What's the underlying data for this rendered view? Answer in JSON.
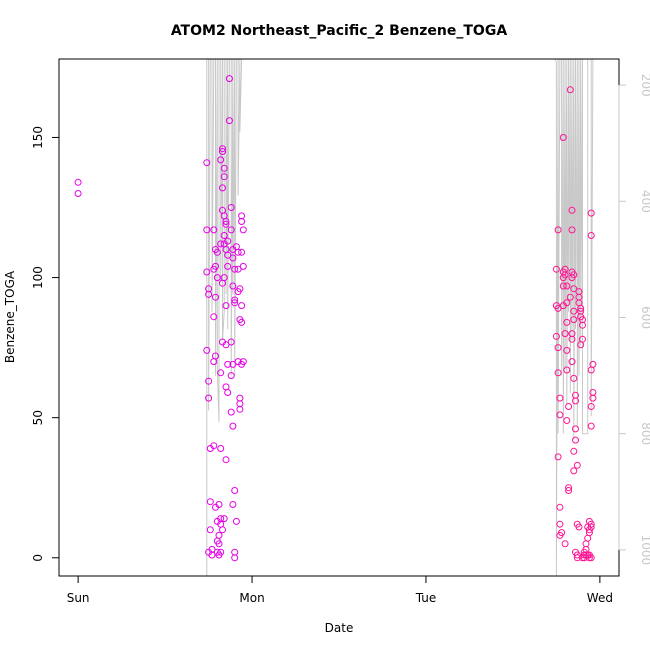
{
  "chart_data": {
    "type": "scatter",
    "title": "ATOM2 Northeast_Pacific_2 Benzene_TOGA",
    "xlabel": "Date",
    "ylabel": "Benzene_TOGA",
    "x_ticks": [
      {
        "value": 0,
        "label": "Sun"
      },
      {
        "value": 1,
        "label": "Mon"
      },
      {
        "value": 2,
        "label": "Tue"
      },
      {
        "value": 3,
        "label": "Wed"
      }
    ],
    "y_ticks": [
      0,
      50,
      100,
      150
    ],
    "y2_ticks": [
      200,
      400,
      600,
      800,
      1000
    ],
    "xlim": [
      -0.11,
      3.11
    ],
    "ylim": [
      -6.5,
      178
    ],
    "y2lim": [
      1045,
      155
    ],
    "y2_reversed": true,
    "grid": false,
    "colors": {
      "points": "#e600e6",
      "points_late": "#ff1493",
      "line": "#c8c8c8",
      "axes": "#000000",
      "right_axis": "#c8c8c8"
    },
    "series": [
      {
        "kind": "points",
        "points": [
          [
            0.0,
            134
          ],
          [
            0.0,
            130
          ],
          [
            0.74,
            141
          ],
          [
            0.74,
            117
          ],
          [
            0.74,
            102
          ],
          [
            0.75,
            96
          ],
          [
            0.75,
            94
          ],
          [
            0.74,
            74
          ],
          [
            0.75,
            63
          ],
          [
            0.75,
            57
          ],
          [
            0.76,
            39
          ],
          [
            0.76,
            20
          ],
          [
            0.76,
            10
          ],
          [
            0.75,
            2
          ],
          [
            0.77,
            1
          ],
          [
            0.77,
            3
          ],
          [
            0.78,
            117
          ],
          [
            0.79,
            110
          ],
          [
            0.79,
            104
          ],
          [
            0.78,
            103
          ],
          [
            0.78,
            86
          ],
          [
            0.79,
            72
          ],
          [
            0.78,
            70
          ],
          [
            0.78,
            40
          ],
          [
            0.79,
            18
          ],
          [
            0.8,
            13
          ],
          [
            0.8,
            6
          ],
          [
            0.8,
            2
          ],
          [
            0.81,
            1
          ],
          [
            0.82,
            14
          ],
          [
            0.81,
            8
          ],
          [
            0.81,
            5
          ],
          [
            0.8,
            109
          ],
          [
            0.8,
            100
          ],
          [
            0.79,
            93
          ],
          [
            0.81,
            19
          ],
          [
            0.82,
            12
          ],
          [
            0.82,
            142
          ],
          [
            0.83,
            145
          ],
          [
            0.83,
            146
          ],
          [
            0.84,
            139
          ],
          [
            0.84,
            136
          ],
          [
            0.83,
            132
          ],
          [
            0.84,
            122
          ],
          [
            0.85,
            120
          ],
          [
            0.85,
            119
          ],
          [
            0.84,
            112
          ],
          [
            0.85,
            110
          ],
          [
            0.86,
            108
          ],
          [
            0.86,
            104
          ],
          [
            0.84,
            100
          ],
          [
            0.83,
            98
          ],
          [
            0.85,
            90
          ],
          [
            0.83,
            77
          ],
          [
            0.85,
            76
          ],
          [
            0.86,
            69
          ],
          [
            0.85,
            61
          ],
          [
            0.86,
            59
          ],
          [
            0.82,
            66
          ],
          [
            0.82,
            39
          ],
          [
            0.85,
            35
          ],
          [
            0.83,
            10
          ],
          [
            0.84,
            14
          ],
          [
            0.82,
            2
          ],
          [
            0.82,
            112
          ],
          [
            0.83,
            124
          ],
          [
            0.84,
            115
          ],
          [
            0.86,
            113
          ],
          [
            0.87,
            171
          ],
          [
            0.87,
            156
          ],
          [
            0.88,
            125
          ],
          [
            0.88,
            117
          ],
          [
            0.89,
            110
          ],
          [
            0.89,
            107
          ],
          [
            0.9,
            103
          ],
          [
            0.89,
            97
          ],
          [
            0.9,
            92
          ],
          [
            0.9,
            91
          ],
          [
            0.88,
            77
          ],
          [
            0.89,
            69
          ],
          [
            0.88,
            52
          ],
          [
            0.89,
            47
          ],
          [
            0.9,
            24
          ],
          [
            0.89,
            19
          ],
          [
            0.91,
            13
          ],
          [
            0.9,
            2
          ],
          [
            0.9,
            0
          ],
          [
            0.88,
            65
          ],
          [
            0.91,
            111
          ],
          [
            0.92,
            109
          ],
          [
            0.92,
            103
          ],
          [
            0.93,
            96
          ],
          [
            0.92,
            95
          ],
          [
            0.93,
            85
          ],
          [
            0.94,
            84
          ],
          [
            0.92,
            70
          ],
          [
            0.94,
            69
          ],
          [
            0.93,
            57
          ],
          [
            0.93,
            55
          ],
          [
            0.93,
            53
          ],
          [
            0.94,
            122
          ],
          [
            0.94,
            120
          ],
          [
            0.95,
            117
          ],
          [
            0.94,
            109
          ],
          [
            0.95,
            104
          ],
          [
            0.94,
            90
          ],
          [
            0.95,
            70
          ],
          [
            2.75,
            103
          ],
          [
            2.75,
            90
          ],
          [
            2.76,
            89
          ],
          [
            2.75,
            79
          ],
          [
            2.76,
            75
          ],
          [
            2.76,
            66
          ],
          [
            2.77,
            57
          ],
          [
            2.77,
            51
          ],
          [
            2.76,
            36
          ],
          [
            2.77,
            18
          ],
          [
            2.77,
            12
          ],
          [
            2.78,
            9
          ],
          [
            2.77,
            8
          ],
          [
            2.76,
            117
          ],
          [
            2.79,
            102
          ],
          [
            2.79,
            100
          ],
          [
            2.79,
            150
          ],
          [
            2.8,
            103
          ],
          [
            2.8,
            101
          ],
          [
            2.81,
            97
          ],
          [
            2.81,
            91
          ],
          [
            2.81,
            84
          ],
          [
            2.8,
            80
          ],
          [
            2.81,
            74
          ],
          [
            2.81,
            67
          ],
          [
            2.82,
            54
          ],
          [
            2.81,
            49
          ],
          [
            2.82,
            24
          ],
          [
            2.82,
            25
          ],
          [
            2.8,
            5
          ],
          [
            2.79,
            97
          ],
          [
            2.79,
            90
          ],
          [
            2.83,
            167
          ],
          [
            2.84,
            124
          ],
          [
            2.84,
            117
          ],
          [
            2.84,
            102
          ],
          [
            2.85,
            101
          ],
          [
            2.84,
            100
          ],
          [
            2.85,
            96
          ],
          [
            2.83,
            93
          ],
          [
            2.85,
            88
          ],
          [
            2.85,
            85
          ],
          [
            2.84,
            80
          ],
          [
            2.84,
            78
          ],
          [
            2.84,
            70
          ],
          [
            2.85,
            64
          ],
          [
            2.86,
            58
          ],
          [
            2.86,
            56
          ],
          [
            2.86,
            46
          ],
          [
            2.86,
            42
          ],
          [
            2.85,
            38
          ],
          [
            2.87,
            33
          ],
          [
            2.85,
            31
          ],
          [
            2.87,
            12
          ],
          [
            2.88,
            11
          ],
          [
            2.86,
            2
          ],
          [
            2.87,
            1
          ],
          [
            2.87,
            0
          ],
          [
            2.88,
            95
          ],
          [
            2.88,
            93
          ],
          [
            2.89,
            89
          ],
          [
            2.89,
            88
          ],
          [
            2.89,
            86
          ],
          [
            2.9,
            85
          ],
          [
            2.9,
            83
          ],
          [
            2.9,
            78
          ],
          [
            2.89,
            76
          ],
          [
            2.88,
            91
          ],
          [
            2.9,
            0
          ],
          [
            2.91,
            0
          ],
          [
            2.91,
            1
          ],
          [
            2.91,
            2
          ],
          [
            2.92,
            1
          ],
          [
            2.92,
            5
          ],
          [
            2.93,
            7
          ],
          [
            2.93,
            11
          ],
          [
            2.94,
            13
          ],
          [
            2.94,
            10
          ],
          [
            2.94,
            9
          ],
          [
            2.95,
            11
          ],
          [
            2.95,
            12
          ],
          [
            2.93,
            1
          ],
          [
            2.94,
            1
          ],
          [
            2.94,
            0
          ],
          [
            2.95,
            0
          ],
          [
            2.92,
            3
          ],
          [
            2.95,
            123
          ],
          [
            2.95,
            115
          ],
          [
            2.96,
            69
          ],
          [
            2.95,
            67
          ],
          [
            2.96,
            59
          ],
          [
            2.96,
            57
          ],
          [
            2.95,
            54
          ],
          [
            2.95,
            47
          ]
        ]
      },
      {
        "kind": "line",
        "points": [
          [
            0.74,
            1045
          ],
          [
            0.74,
            155
          ],
          [
            0.75,
            155
          ],
          [
            0.75,
            760
          ],
          [
            0.76,
            155
          ],
          [
            0.77,
            155
          ],
          [
            0.77,
            590
          ],
          [
            0.78,
            155
          ],
          [
            0.79,
            155
          ],
          [
            0.79,
            700
          ],
          [
            0.8,
            155
          ],
          [
            0.8,
            690
          ],
          [
            0.81,
            780
          ],
          [
            0.81,
            155
          ],
          [
            0.82,
            155
          ],
          [
            0.82,
            540
          ],
          [
            0.83,
            155
          ],
          [
            0.83,
            640
          ],
          [
            0.84,
            590
          ],
          [
            0.84,
            155
          ],
          [
            0.85,
            155
          ],
          [
            0.85,
            560
          ],
          [
            0.86,
            155
          ],
          [
            0.86,
            620
          ],
          [
            0.87,
            155
          ],
          [
            0.88,
            155
          ],
          [
            0.88,
            700
          ],
          [
            0.89,
            155
          ],
          [
            0.89,
            560
          ],
          [
            0.9,
            155
          ],
          [
            0.9,
            700
          ],
          [
            0.91,
            155
          ],
          [
            0.92,
            155
          ],
          [
            0.92,
            390
          ],
          [
            0.93,
            155
          ],
          [
            0.93,
            280
          ],
          [
            0.94,
            155
          ],
          [
            2.74,
            155
          ],
          [
            2.75,
            160
          ],
          [
            2.75,
            1045
          ],
          [
            2.76,
            155
          ],
          [
            2.76,
            800
          ],
          [
            2.77,
            155
          ],
          [
            2.78,
            155
          ],
          [
            2.78,
            700
          ],
          [
            2.79,
            155
          ],
          [
            2.79,
            800
          ],
          [
            2.8,
            155
          ],
          [
            2.8,
            690
          ],
          [
            2.81,
            155
          ],
          [
            2.81,
            750
          ],
          [
            2.82,
            155
          ],
          [
            2.82,
            590
          ],
          [
            2.83,
            155
          ],
          [
            2.83,
            730
          ],
          [
            2.84,
            155
          ],
          [
            2.84,
            640
          ],
          [
            2.85,
            155
          ],
          [
            2.85,
            810
          ],
          [
            2.86,
            155
          ],
          [
            2.86,
            620
          ],
          [
            2.87,
            155
          ],
          [
            2.87,
            790
          ],
          [
            2.88,
            155
          ],
          [
            2.88,
            700
          ],
          [
            2.89,
            155
          ],
          [
            2.89,
            650
          ],
          [
            2.9,
            155
          ],
          [
            2.9,
            800
          ],
          [
            2.92,
            800
          ],
          [
            2.93,
            800
          ],
          [
            2.93,
            155
          ],
          [
            2.95,
            155
          ],
          [
            2.95,
            770
          ],
          [
            2.96,
            155
          ]
        ]
      }
    ]
  }
}
